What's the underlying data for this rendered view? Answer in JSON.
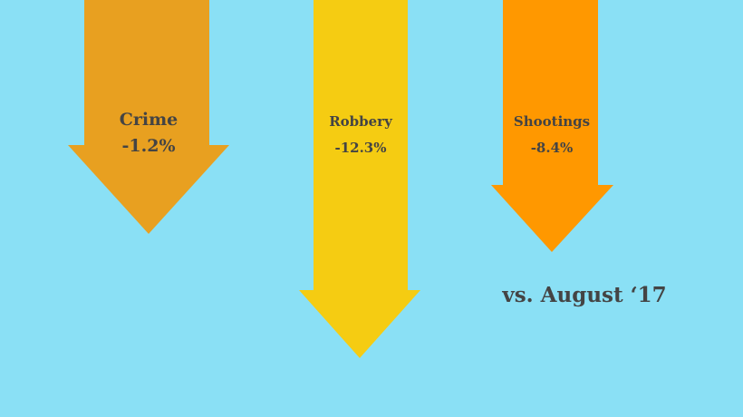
{
  "items": [
    {
      "label": "Crime",
      "value": "-1.2%"
    },
    {
      "label": "Robbery",
      "value": "-12.3%"
    },
    {
      "label": "Shootings",
      "value": "-8.4%"
    }
  ],
  "footnote": "vs. August ‘17"
}
